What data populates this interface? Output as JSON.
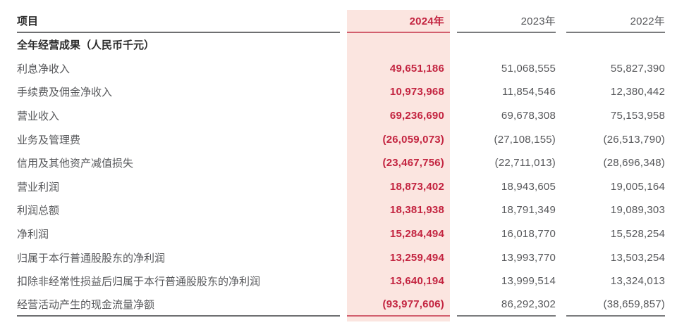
{
  "colors": {
    "page_bg": "#ffffff",
    "pink_bg": "#fbe5e0",
    "accent_red": "#c32440",
    "red_line": "#d25f6e",
    "text_dark": "#2b2b2b",
    "text_gray": "#56575a",
    "line_dark": "#6e6f71",
    "line_gray": "#7b7c7e"
  },
  "table": {
    "header": {
      "item": "项目",
      "y2024": "2024年",
      "y2023": "2023年",
      "y2022": "2022年"
    },
    "section_title": "全年经营成果（人民币千元）",
    "rows": [
      {
        "label": "利息净收入",
        "y2024": "49,651,186",
        "y2023": "51,068,555",
        "y2022": "55,827,390"
      },
      {
        "label": "手续费及佣金净收入",
        "y2024": "10,973,968",
        "y2023": "11,854,546",
        "y2022": "12,380,442"
      },
      {
        "label": "营业收入",
        "y2024": "69,236,690",
        "y2023": "69,678,308",
        "y2022": "75,153,958"
      },
      {
        "label": "业务及管理费",
        "y2024": "(26,059,073)",
        "y2023": "(27,108,155)",
        "y2022": "(26,513,790)"
      },
      {
        "label": "信用及其他资产减值损失",
        "y2024": "(23,467,756)",
        "y2023": "(22,711,013)",
        "y2022": "(28,696,348)"
      },
      {
        "label": "营业利润",
        "y2024": "18,873,402",
        "y2023": "18,943,605",
        "y2022": "19,005,164"
      },
      {
        "label": "利润总额",
        "y2024": "18,381,938",
        "y2023": "18,791,349",
        "y2022": "19,089,303"
      },
      {
        "label": "净利润",
        "y2024": "15,284,494",
        "y2023": "16,018,770",
        "y2022": "15,528,254"
      },
      {
        "label": "归属于本行普通股股东的净利润",
        "y2024": "13,259,494",
        "y2023": "13,993,770",
        "y2022": "13,503,254"
      },
      {
        "label": "扣除非经常性损益后归属于本行普通股股东的净利润",
        "y2024": "13,640,194",
        "y2023": "13,999,514",
        "y2022": "13,324,013"
      },
      {
        "label": "经营活动产生的现金流量净额",
        "y2024": "(93,977,606)",
        "y2023": "86,292,302",
        "y2022": "(38,659,857)"
      }
    ]
  }
}
